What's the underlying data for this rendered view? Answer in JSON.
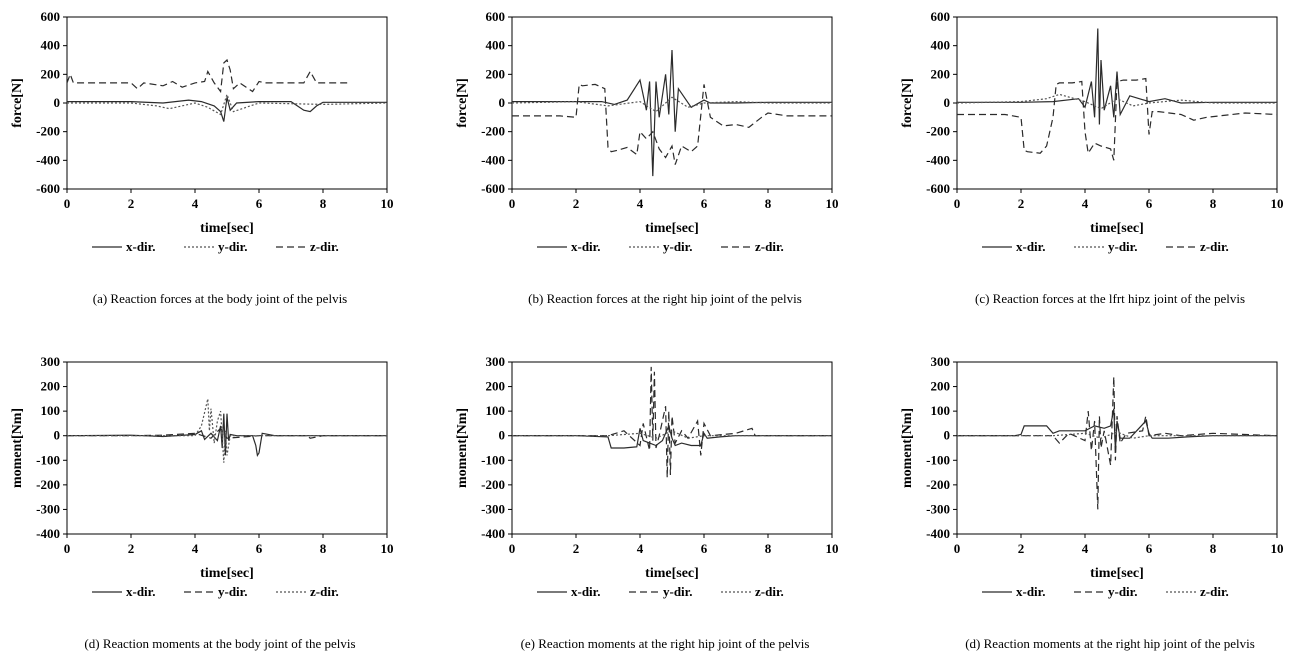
{
  "chart_data": [
    {
      "type": "line",
      "caption": "(a) Reaction forces at the body joint of the pelvis",
      "xlabel": "time[sec]",
      "ylabel": "force[N]",
      "xlim": [
        0,
        10
      ],
      "ylim": [
        -600,
        600
      ],
      "xticks": [
        "0",
        "2",
        "4",
        "6",
        "8",
        "10"
      ],
      "yticks": [
        "600",
        "400",
        "200",
        "0",
        "-200",
        "-400",
        "-600"
      ],
      "legend_position": "bottom",
      "series": [
        {
          "name": "x-dir.",
          "style": "solid",
          "x": [
            0,
            1,
            2,
            3,
            3.8,
            4.2,
            4.6,
            4.8,
            4.9,
            5.0,
            5.1,
            5.3,
            6,
            7,
            7.4,
            7.6,
            7.8,
            8,
            9,
            10
          ],
          "y": [
            10,
            10,
            10,
            0,
            20,
            10,
            -20,
            -60,
            -130,
            40,
            -50,
            0,
            10,
            10,
            -50,
            -60,
            -20,
            5,
            5,
            5
          ]
        },
        {
          "name": "y-dir.",
          "style": "dotted",
          "x": [
            0,
            2,
            2.8,
            3.2,
            4,
            4.4,
            4.8,
            5.0,
            5.2,
            6,
            8,
            10
          ],
          "y": [
            0,
            0,
            -20,
            -40,
            0,
            -30,
            -80,
            60,
            -60,
            0,
            -10,
            0
          ]
        },
        {
          "name": "z-dir.",
          "style": "dashed",
          "x": [
            0,
            0.1,
            0.2,
            2.0,
            2.2,
            2.4,
            3.0,
            3.3,
            3.6,
            4.0,
            4.3,
            4.4,
            4.6,
            4.8,
            4.9,
            5.0,
            5.1,
            5.2,
            5.4,
            5.8,
            6.0,
            6.2,
            7.0,
            7.4,
            7.6,
            7.8,
            8.0,
            8.8
          ],
          "y": [
            140,
            200,
            140,
            140,
            100,
            140,
            120,
            150,
            110,
            140,
            150,
            220,
            140,
            80,
            280,
            300,
            230,
            100,
            140,
            80,
            150,
            140,
            140,
            140,
            220,
            140,
            140,
            140
          ]
        }
      ]
    },
    {
      "type": "line",
      "caption": "(b) Reaction forces at the right hip joint of the pelvis",
      "xlabel": "time[sec]",
      "ylabel": "force[N]",
      "xlim": [
        0,
        10
      ],
      "ylim": [
        -600,
        600
      ],
      "xticks": [
        "0",
        "2",
        "4",
        "6",
        "8",
        "10"
      ],
      "yticks": [
        "600",
        "400",
        "200",
        "0",
        "-200",
        "-400",
        "-600"
      ],
      "legend_position": "bottom",
      "series": [
        {
          "name": "x-dir.",
          "style": "solid",
          "x": [
            0,
            2,
            2.8,
            3.2,
            3.6,
            4.0,
            4.2,
            4.3,
            4.4,
            4.5,
            4.6,
            4.8,
            4.9,
            5.0,
            5.1,
            5.2,
            5.6,
            6.0,
            6.2,
            7,
            8,
            10
          ],
          "y": [
            10,
            10,
            10,
            -10,
            20,
            160,
            -50,
            150,
            -510,
            150,
            -100,
            200,
            -80,
            370,
            -200,
            100,
            -30,
            20,
            0,
            0,
            5,
            5
          ]
        },
        {
          "name": "y-dir.",
          "style": "dotted",
          "x": [
            0,
            2,
            3,
            4,
            4.5,
            5,
            5.5,
            6,
            7,
            8,
            10
          ],
          "y": [
            0,
            10,
            -20,
            10,
            -60,
            40,
            -30,
            0,
            10,
            0,
            0
          ]
        },
        {
          "name": "z-dir.",
          "style": "dashed",
          "x": [
            0,
            1.5,
            2.0,
            2.1,
            2.2,
            2.6,
            2.9,
            3.0,
            3.1,
            3.3,
            3.6,
            3.9,
            4.0,
            4.2,
            4.4,
            4.6,
            4.8,
            5.0,
            5.1,
            5.3,
            5.6,
            5.8,
            6.0,
            6.2,
            6.6,
            7.0,
            7.4,
            7.8,
            8.0,
            8.6,
            10
          ],
          "y": [
            -90,
            -90,
            -100,
            130,
            120,
            130,
            100,
            -310,
            -340,
            -330,
            -310,
            -360,
            -200,
            -250,
            -200,
            -320,
            -380,
            -300,
            -430,
            -300,
            -340,
            -300,
            130,
            -100,
            -160,
            -150,
            -170,
            -100,
            -70,
            -90,
            -90
          ]
        }
      ]
    },
    {
      "type": "line",
      "caption": "(c) Reaction forces at the lfrt hipz joint of the pelvis",
      "xlabel": "time[sec]",
      "ylabel": "force[N]",
      "xlim": [
        0,
        10
      ],
      "ylim": [
        -600,
        600
      ],
      "xticks": [
        "0",
        "2",
        "4",
        "6",
        "8",
        "10"
      ],
      "yticks": [
        "600",
        "400",
        "200",
        "0",
        "-200",
        "-400",
        "-600"
      ],
      "legend_position": "bottom",
      "series": [
        {
          "name": "x-dir.",
          "style": "solid",
          "x": [
            0,
            2,
            3,
            3.8,
            4.0,
            4.2,
            4.3,
            4.4,
            4.45,
            4.5,
            4.6,
            4.8,
            4.9,
            5.0,
            5.1,
            5.4,
            6,
            6.5,
            7,
            8,
            10
          ],
          "y": [
            5,
            5,
            10,
            30,
            -30,
            150,
            -100,
            520,
            -150,
            300,
            -50,
            120,
            -100,
            220,
            -80,
            50,
            10,
            30,
            0,
            5,
            5
          ]
        },
        {
          "name": "y-dir.",
          "style": "dotted",
          "x": [
            0,
            2,
            2.8,
            3.2,
            4,
            4.5,
            5,
            5.5,
            6,
            7,
            8,
            10
          ],
          "y": [
            0,
            10,
            30,
            60,
            10,
            -40,
            30,
            -20,
            0,
            20,
            0,
            0
          ]
        },
        {
          "name": "z-dir.",
          "style": "dashed",
          "x": [
            0,
            1.5,
            2.0,
            2.1,
            2.2,
            2.6,
            2.8,
            3.0,
            3.1,
            3.2,
            3.6,
            3.9,
            4.0,
            4.1,
            4.3,
            4.5,
            4.8,
            4.9,
            5.0,
            5.2,
            5.6,
            5.9,
            6.0,
            6.1,
            6.3,
            7.0,
            7.4,
            7.8,
            8.2,
            9,
            10
          ],
          "y": [
            -80,
            -80,
            -100,
            -330,
            -340,
            -350,
            -300,
            -100,
            130,
            140,
            140,
            150,
            -200,
            -350,
            -280,
            -300,
            -320,
            -400,
            150,
            160,
            160,
            170,
            -220,
            -60,
            -60,
            -80,
            -120,
            -100,
            -90,
            -70,
            -80
          ]
        }
      ]
    },
    {
      "type": "line",
      "caption": "(d) Reaction moments at the body joint of the pelvis",
      "xlabel": "time[sec]",
      "ylabel": "moment[Nm]",
      "xlim": [
        0,
        10
      ],
      "ylim": [
        -400,
        300
      ],
      "xticks": [
        "0",
        "2",
        "4",
        "6",
        "8",
        "10"
      ],
      "yticks": [
        "300",
        "200",
        "100",
        "0",
        "-100",
        "-200",
        "-300",
        "-400"
      ],
      "legend_position": "bottom",
      "series": [
        {
          "name": "x-dir.",
          "style": "solid",
          "x": [
            0,
            2,
            3,
            4.0,
            4.2,
            4.3,
            4.5,
            4.7,
            4.8,
            4.85,
            4.9,
            4.95,
            5.0,
            5.05,
            5.1,
            5.3,
            5.8,
            5.9,
            5.95,
            6.0,
            6.1,
            6.5,
            8,
            10
          ],
          "y": [
            0,
            2,
            -3,
            5,
            20,
            -15,
            10,
            -20,
            40,
            -50,
            90,
            -80,
            90,
            -20,
            5,
            0,
            0,
            -40,
            -80,
            -70,
            10,
            0,
            0,
            0
          ]
        },
        {
          "name": "y-dir.",
          "style": "dashed",
          "x": [
            0,
            2,
            3,
            4,
            4.5,
            4.8,
            5,
            6,
            7.5,
            7.6,
            8,
            10
          ],
          "y": [
            0,
            0,
            2,
            10,
            -10,
            30,
            -10,
            0,
            0,
            -10,
            0,
            0
          ]
        },
        {
          "name": "z-dir.",
          "style": "dotted",
          "x": [
            0,
            2,
            4,
            4.2,
            4.4,
            4.45,
            4.5,
            4.6,
            4.7,
            4.8,
            4.9,
            4.95,
            5.0,
            5.1,
            5.5,
            10
          ],
          "y": [
            0,
            0,
            0,
            40,
            150,
            20,
            110,
            -30,
            60,
            100,
            -110,
            20,
            -80,
            0,
            0,
            0
          ]
        }
      ]
    },
    {
      "type": "line",
      "caption": "(e) Reaction moments at the right hip joint of the pelvis",
      "xlabel": "time[sec]",
      "ylabel": "moment[Nm]",
      "xlim": [
        0,
        10
      ],
      "ylim": [
        -400,
        300
      ],
      "xticks": [
        "0",
        "2",
        "4",
        "6",
        "8",
        "10"
      ],
      "yticks": [
        "300",
        "200",
        "100",
        "0",
        "-100",
        "-200",
        "-300",
        "-400"
      ],
      "legend_position": "bottom",
      "series": [
        {
          "name": "x-dir.",
          "style": "solid",
          "x": [
            0,
            2,
            3,
            3.1,
            3.5,
            3.9,
            4.0,
            4.1,
            4.3,
            4.5,
            4.7,
            4.9,
            5.0,
            5.1,
            5.3,
            5.6,
            5.9,
            6.0,
            6.1,
            6.5,
            7,
            8,
            10
          ],
          "y": [
            0,
            0,
            -5,
            -50,
            -50,
            -45,
            30,
            -20,
            -30,
            -40,
            -20,
            40,
            -10,
            -40,
            -30,
            -40,
            -40,
            10,
            -10,
            -5,
            0,
            0,
            0
          ]
        },
        {
          "name": "y-dir.",
          "style": "dashed",
          "x": [
            0,
            2,
            3,
            3.5,
            4.0,
            4.1,
            4.3,
            4.35,
            4.4,
            4.45,
            4.5,
            4.6,
            4.8,
            4.85,
            4.9,
            4.95,
            5.0,
            5.1,
            5.3,
            5.5,
            5.8,
            5.9,
            6.0,
            6.2,
            7,
            7.5,
            7.6,
            8,
            10
          ],
          "y": [
            0,
            0,
            0,
            20,
            -40,
            50,
            -60,
            280,
            -20,
            260,
            -50,
            0,
            120,
            -170,
            100,
            -160,
            80,
            -30,
            20,
            -10,
            60,
            -80,
            50,
            0,
            10,
            30,
            0,
            0,
            0
          ]
        },
        {
          "name": "z-dir.",
          "style": "dotted",
          "x": [
            0,
            3,
            4,
            4.5,
            5,
            5.5,
            6,
            10
          ],
          "y": [
            0,
            0,
            10,
            -10,
            20,
            -10,
            0,
            0
          ]
        }
      ]
    },
    {
      "type": "line",
      "caption": "(d) Reaction moments at the right hip joint of the pelvis",
      "xlabel": "time[sec]",
      "ylabel": "moment[Nm]",
      "xlim": [
        0,
        10
      ],
      "ylim": [
        -400,
        300
      ],
      "xticks": [
        "0",
        "2",
        "4",
        "6",
        "8",
        "10"
      ],
      "yticks": [
        "300",
        "200",
        "100",
        "0",
        "-100",
        "-200",
        "-300",
        "-400"
      ],
      "legend_position": "bottom",
      "series": [
        {
          "name": "x-dir.",
          "style": "solid",
          "x": [
            0,
            1.8,
            2.0,
            2.1,
            2.8,
            3.0,
            3.2,
            4.0,
            4.3,
            4.6,
            4.8,
            4.9,
            4.95,
            5.0,
            5.1,
            5.4,
            5.9,
            6.0,
            6.1,
            6.6,
            7.2,
            8,
            10
          ],
          "y": [
            0,
            0,
            5,
            40,
            40,
            10,
            20,
            20,
            40,
            30,
            40,
            110,
            -60,
            60,
            -10,
            -10,
            60,
            10,
            -10,
            -10,
            -5,
            0,
            0
          ]
        },
        {
          "name": "y-dir.",
          "style": "dashed",
          "x": [
            0,
            2,
            3,
            3.2,
            3.5,
            4.0,
            4.1,
            4.2,
            4.3,
            4.4,
            4.45,
            4.5,
            4.6,
            4.8,
            4.9,
            4.95,
            5.0,
            5.1,
            5.3,
            5.8,
            5.9,
            6.0,
            6.5,
            7,
            8,
            10
          ],
          "y": [
            0,
            0,
            0,
            -30,
            10,
            -20,
            100,
            -60,
            60,
            -300,
            80,
            -50,
            20,
            -120,
            240,
            -100,
            80,
            -30,
            10,
            20,
            80,
            0,
            10,
            0,
            10,
            0
          ]
        },
        {
          "name": "z-dir.",
          "style": "dotted",
          "x": [
            0,
            3,
            4,
            4.5,
            5,
            5.5,
            6,
            10
          ],
          "y": [
            0,
            0,
            10,
            -10,
            15,
            -10,
            0,
            0
          ]
        }
      ]
    }
  ]
}
